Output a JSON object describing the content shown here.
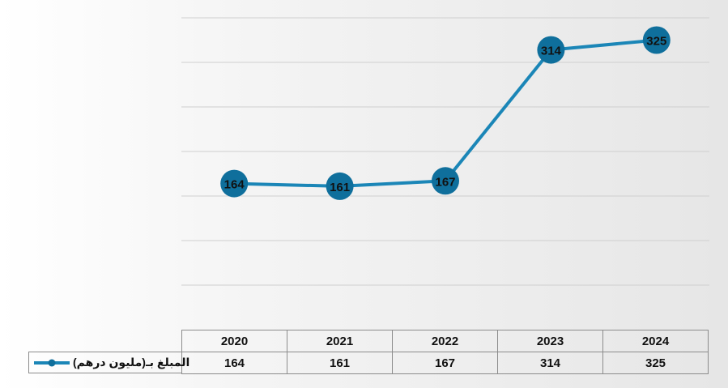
{
  "chart_data": {
    "type": "line",
    "categories": [
      "2020",
      "2021",
      "2022",
      "2023",
      "2024"
    ],
    "series": [
      {
        "name": "المبلغ بـ(مليون درهم)",
        "values": [
          164,
          161,
          167,
          314,
          325
        ]
      }
    ],
    "data_labels": [
      "164",
      "161",
      "167",
      "314",
      "325"
    ],
    "ylim": [
      0,
      350
    ],
    "y_gridlines": true,
    "y_axis_ticks_visible": false,
    "data_table": true,
    "line_color": "#1b86b7",
    "marker_color": "#0f6f9c"
  }
}
